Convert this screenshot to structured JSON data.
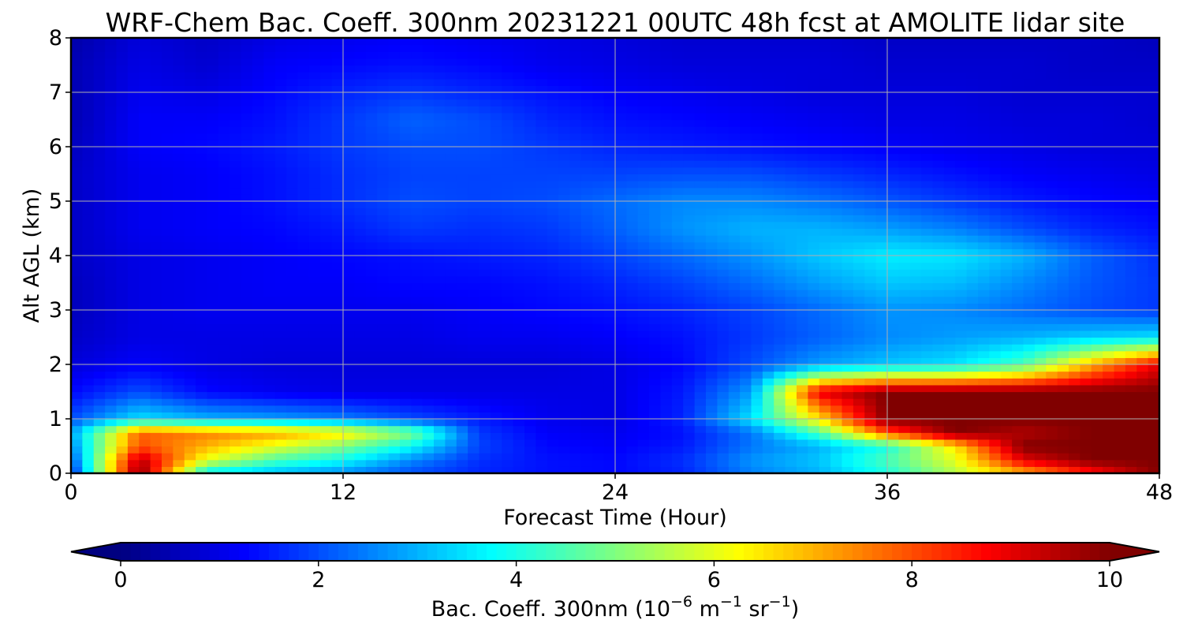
{
  "chart_data": {
    "type": "heatmap",
    "title": "WRF-Chem Bac. Coeff. 300nm  20231221 00UTC 48h fcst at AMOLITE lidar site",
    "xlabel": "Forecast Time (Hour)",
    "ylabel": "Alt AGL (km)",
    "xlim": [
      0,
      48
    ],
    "ylim": [
      0,
      8
    ],
    "x_ticks": [
      "0",
      "12",
      "24",
      "36",
      "48"
    ],
    "y_ticks": [
      "0",
      "1",
      "2",
      "3",
      "4",
      "5",
      "6",
      "7",
      "8"
    ],
    "grid": true,
    "colormap": "jet",
    "colorbar": {
      "label_prefix": "Bac. Coeff. 300nm  (10",
      "label_exp1": "−6",
      "label_mid": " m",
      "label_exp2": "−1",
      "label_mid2": " sr",
      "label_exp3": "−1",
      "label_suffix": ")",
      "ticks": [
        "0",
        "2",
        "4",
        "6",
        "8",
        "10"
      ],
      "vmin": 0,
      "vmax": 10,
      "extend": "both",
      "placement": "bottom"
    },
    "x": [
      0,
      3,
      6,
      9,
      12,
      15,
      18,
      21,
      24,
      27,
      30,
      33,
      36,
      39,
      42,
      45,
      48
    ],
    "y": [
      0,
      0.25,
      0.5,
      0.75,
      1.0,
      1.5,
      2.0,
      2.5,
      3.0,
      3.5,
      4.0,
      4.5,
      5.0,
      5.5,
      6.0,
      6.5,
      7.0,
      7.5,
      8.0
    ],
    "z": [
      [
        1.5,
        10,
        3.5,
        3.0,
        2.6,
        2.0,
        1.6,
        1.4,
        1.3,
        1.6,
        2.5,
        3.0,
        4.0,
        5.5,
        7.0,
        8.5,
        10
      ],
      [
        2.0,
        9.5,
        6.0,
        4.5,
        3.8,
        2.6,
        1.7,
        1.4,
        1.3,
        1.7,
        2.7,
        3.2,
        4.5,
        6.0,
        9.0,
        10,
        10
      ],
      [
        2.5,
        8.0,
        7.0,
        6.0,
        5.0,
        3.8,
        1.9,
        1.3,
        1.2,
        1.5,
        2.4,
        3.0,
        4.0,
        6.5,
        10,
        10,
        10
      ],
      [
        2.8,
        7.8,
        7.5,
        7.2,
        6.5,
        5.0,
        1.8,
        1.2,
        1.1,
        1.4,
        2.4,
        4.5,
        8.0,
        10,
        9.5,
        10,
        10
      ],
      [
        2.0,
        3.5,
        3.0,
        2.8,
        2.5,
        2.0,
        1.5,
        1.1,
        1.0,
        1.6,
        3.5,
        6.5,
        10,
        10,
        10,
        10,
        10
      ],
      [
        1.3,
        2.0,
        1.3,
        1.1,
        1.0,
        1.0,
        1.0,
        1.0,
        1.0,
        1.5,
        2.8,
        9.0,
        10,
        10,
        10,
        10,
        10
      ],
      [
        0.9,
        1.2,
        1.0,
        0.9,
        0.9,
        0.9,
        0.9,
        0.9,
        1.0,
        1.3,
        2.0,
        2.8,
        3.2,
        3.5,
        4.5,
        7.0,
        9.0
      ],
      [
        0.7,
        1.0,
        1.0,
        1.0,
        1.0,
        1.0,
        1.1,
        1.1,
        1.2,
        1.4,
        1.8,
        2.2,
        2.6,
        2.8,
        3.0,
        3.3,
        3.5
      ],
      [
        0.6,
        1.0,
        1.1,
        1.1,
        1.1,
        1.1,
        1.2,
        1.3,
        1.4,
        1.6,
        1.9,
        2.3,
        2.7,
        2.6,
        2.3,
        2.0,
        1.8
      ],
      [
        0.6,
        1.0,
        1.1,
        1.2,
        1.2,
        1.3,
        1.3,
        1.4,
        1.6,
        1.9,
        2.3,
        2.8,
        3.2,
        3.1,
        2.6,
        2.1,
        1.8
      ],
      [
        0.7,
        1.0,
        1.1,
        1.2,
        1.3,
        1.4,
        1.5,
        1.6,
        1.9,
        2.3,
        2.7,
        3.2,
        3.6,
        3.5,
        3.0,
        2.2,
        1.7
      ],
      [
        0.7,
        1.1,
        1.2,
        1.3,
        1.5,
        1.8,
        1.7,
        1.8,
        2.2,
        2.7,
        3.0,
        3.0,
        2.8,
        2.5,
        2.0,
        1.6,
        1.4
      ],
      [
        0.7,
        1.1,
        1.2,
        1.4,
        1.7,
        2.0,
        1.9,
        2.0,
        2.3,
        2.6,
        2.6,
        2.4,
        2.1,
        1.8,
        1.5,
        1.3,
        1.2
      ],
      [
        0.7,
        1.1,
        1.2,
        1.4,
        1.7,
        1.9,
        1.9,
        1.9,
        1.9,
        2.0,
        2.0,
        1.8,
        1.6,
        1.4,
        1.2,
        1.1,
        1.0
      ],
      [
        0.6,
        1.2,
        1.3,
        1.5,
        1.8,
        2.0,
        2.0,
        1.8,
        1.6,
        1.5,
        1.4,
        1.3,
        1.2,
        1.1,
        1.0,
        0.9,
        0.9
      ],
      [
        0.5,
        1.2,
        1.2,
        1.4,
        1.8,
        2.2,
        2.0,
        1.6,
        1.4,
        1.3,
        1.2,
        1.1,
        1.0,
        1.0,
        0.9,
        0.9,
        0.8
      ],
      [
        0.5,
        1.1,
        1.0,
        1.3,
        1.6,
        1.8,
        1.6,
        1.4,
        1.2,
        1.1,
        1.0,
        0.9,
        0.9,
        0.9,
        0.8,
        0.8,
        0.8
      ],
      [
        0.5,
        1.0,
        0.8,
        1.2,
        1.3,
        1.4,
        1.3,
        1.1,
        1.0,
        0.9,
        0.9,
        0.9,
        0.8,
        0.8,
        0.8,
        0.7,
        0.7
      ],
      [
        0.4,
        0.9,
        0.7,
        1.0,
        1.1,
        1.2,
        1.1,
        1.0,
        0.9,
        0.8,
        0.8,
        0.8,
        0.7,
        0.7,
        0.7,
        0.7,
        0.6
      ]
    ]
  }
}
